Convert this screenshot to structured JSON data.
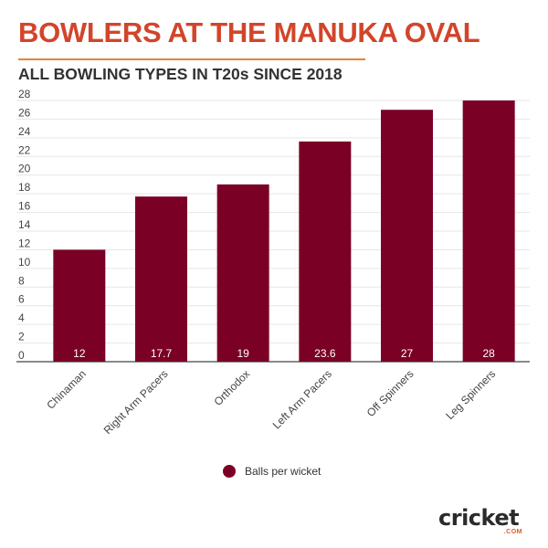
{
  "header": {
    "title": "BOWLERS AT THE MANUKA OVAL",
    "subtitle": "ALL BOWLING TYPES IN T20s SINCE 2018"
  },
  "colors": {
    "title": "#d2452a",
    "rule": "#e0863a",
    "bar": "#7b0026",
    "grid": "#e6e6e6",
    "axis": "#444444",
    "bar_label": "#ffffff"
  },
  "chart_data": {
    "type": "bar",
    "title": "BOWLERS AT THE MANUKA OVAL",
    "subtitle": "ALL BOWLING TYPES IN T20s SINCE 2018",
    "categories": [
      "Chinaman",
      "Right Arm Pacers",
      "Orthodox",
      "Left Arm Pacers",
      "Off Spinners",
      "Leg Spinners"
    ],
    "series": [
      {
        "name": "Balls per wicket",
        "values": [
          12,
          17.7,
          19,
          23.6,
          27,
          28
        ]
      }
    ],
    "ylim": [
      0,
      28
    ],
    "yticks": [
      0,
      2,
      4,
      6,
      8,
      10,
      12,
      14,
      16,
      18,
      20,
      22,
      24,
      26,
      28
    ],
    "grid": true,
    "legend_position": "bottom-center",
    "data_labels": true
  },
  "legend": {
    "label": "Balls per wicket"
  },
  "branding": {
    "logo_text": "cricket",
    "logo_sub": ".COM",
    "logo_icon": "cricket-ball-icon"
  }
}
